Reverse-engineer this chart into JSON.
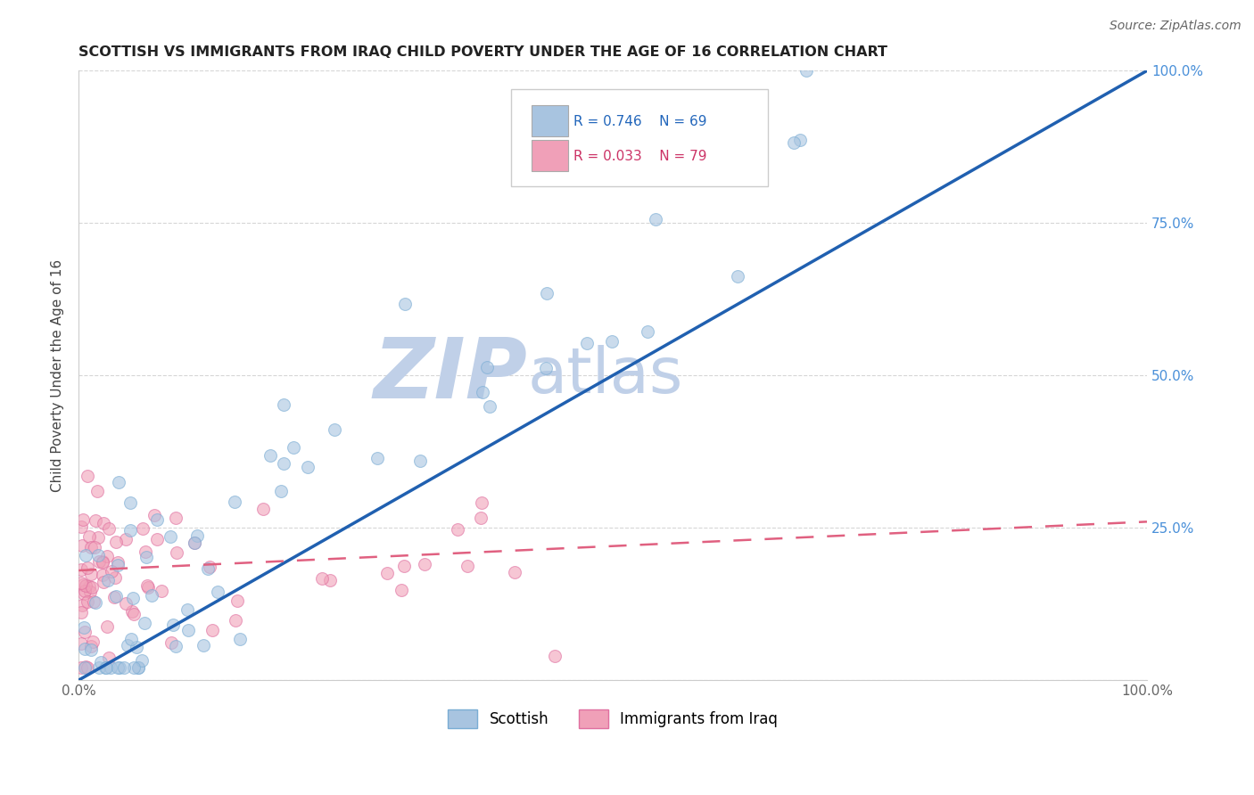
{
  "title": "SCOTTISH VS IMMIGRANTS FROM IRAQ CHILD POVERTY UNDER THE AGE OF 16 CORRELATION CHART",
  "source": "Source: ZipAtlas.com",
  "ylabel": "Child Poverty Under the Age of 16",
  "xlim": [
    0,
    1
  ],
  "ylim": [
    0,
    1
  ],
  "xticks": [
    0.0,
    0.25,
    0.5,
    0.75,
    1.0
  ],
  "yticks": [
    0.0,
    0.25,
    0.5,
    0.75,
    1.0
  ],
  "xticklabels_left": [
    "0.0%",
    "",
    "",
    "",
    "100.0%"
  ],
  "yticklabels_left": [
    "",
    "",
    "",
    "",
    ""
  ],
  "yticklabels_right": [
    "",
    "25.0%",
    "50.0%",
    "75.0%",
    "100.0%"
  ],
  "scottish_color": "#a8c4e0",
  "scottish_edge_color": "#7aadd4",
  "iraq_color": "#f0a0b8",
  "iraq_edge_color": "#e070a0",
  "scottish_line_color": "#2060b0",
  "iraq_line_color": "#e06080",
  "legend_r_scottish": "R = 0.746",
  "legend_n_scottish": "N = 69",
  "legend_r_iraq": "R = 0.033",
  "legend_n_iraq": "N = 79",
  "watermark_zip": "ZIP",
  "watermark_atlas": "atlas",
  "watermark_color_zip": "#c0d0e8",
  "watermark_color_atlas": "#c0d0e8",
  "background_color": "#ffffff",
  "grid_color": "#cccccc",
  "scottish_r": 0.746,
  "scottish_n": 69,
  "iraq_r": 0.033,
  "iraq_n": 79,
  "scatter_size": 100
}
